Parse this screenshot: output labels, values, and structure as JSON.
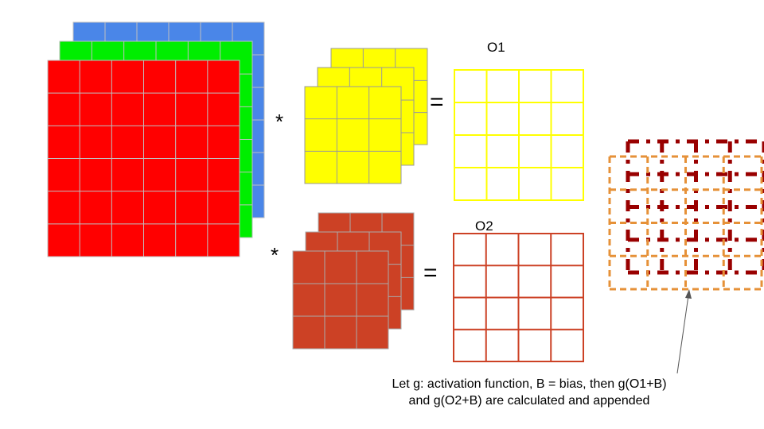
{
  "colors": {
    "input_red": "#ff0000",
    "input_green": "#00ee00",
    "input_blue": "#4a86e8",
    "kernel_yellow": "#ffff00",
    "kernel_brown": "#cc4125",
    "output1_border": "#ffff00",
    "output2_border": "#cc4125",
    "stack_orange": "#e69138",
    "stack_darkred": "#990000"
  },
  "labels": {
    "o1": "O1",
    "o2": "O2",
    "star": "*",
    "equals": "="
  },
  "caption": {
    "line1": "Let g: activation function, B = bias, then g(O1+B)",
    "line2": "and g(O2+B) are calculated and appended"
  }
}
